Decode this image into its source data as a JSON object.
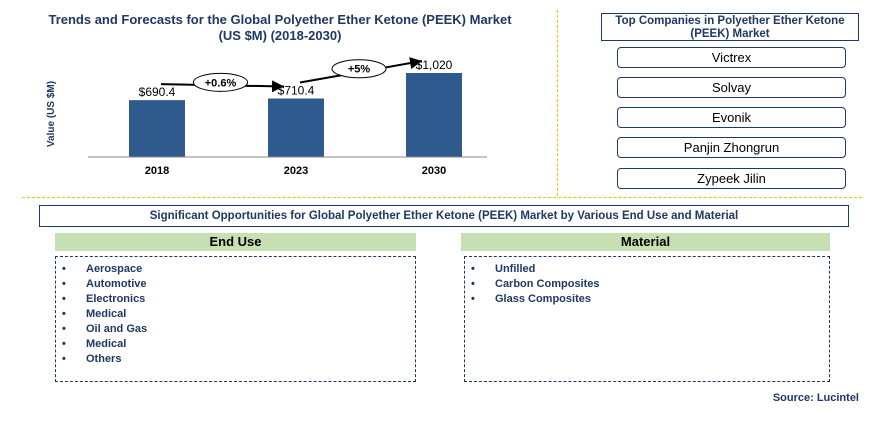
{
  "chart": {
    "title_line1": "Trends and Forecasts for the Global Polyether Ether Ketone (PEEK) Market",
    "title_line2": "(US $M) (2018-2030)"
  },
  "chart_data": {
    "type": "bar",
    "categories": [
      "2018",
      "2023",
      "2030"
    ],
    "values": [
      690.4,
      710.4,
      1020
    ],
    "value_labels": [
      "$690.4",
      "$710.4",
      "$1,020"
    ],
    "ylabel": "Value (US $M)",
    "growth_annotations": [
      {
        "from": "2018",
        "to": "2023",
        "label": "+0.6%"
      },
      {
        "from": "2023",
        "to": "2030",
        "label": "+5%"
      }
    ],
    "bar_color": "#2e5a8e",
    "grid": false
  },
  "companies": {
    "title": "Top Companies in Polyether Ether Ketone (PEEK) Market",
    "items": [
      "Victrex",
      "Solvay",
      "Evonik",
      "Panjin Zhongrun",
      "Zypeek Jilin"
    ]
  },
  "opportunities": {
    "title": "Significant Opportunities for Global Polyether Ether Ketone (PEEK) Market by Various  End Use and Material"
  },
  "end_use": {
    "header": "End Use",
    "items": [
      "Aerospace",
      "Automotive",
      "Electronics",
      "Medical",
      "Oil and Gas",
      "Medical",
      "Others"
    ]
  },
  "material": {
    "header": "Material",
    "items": [
      "Unfilled",
      "Carbon Composites",
      "Glass Composites"
    ]
  },
  "source": "Source: Lucintel",
  "colors": {
    "navy": "#1f3864",
    "bar": "#2e5a8e",
    "segment_header": "#c6e0b4",
    "divider": "#f2c200"
  }
}
